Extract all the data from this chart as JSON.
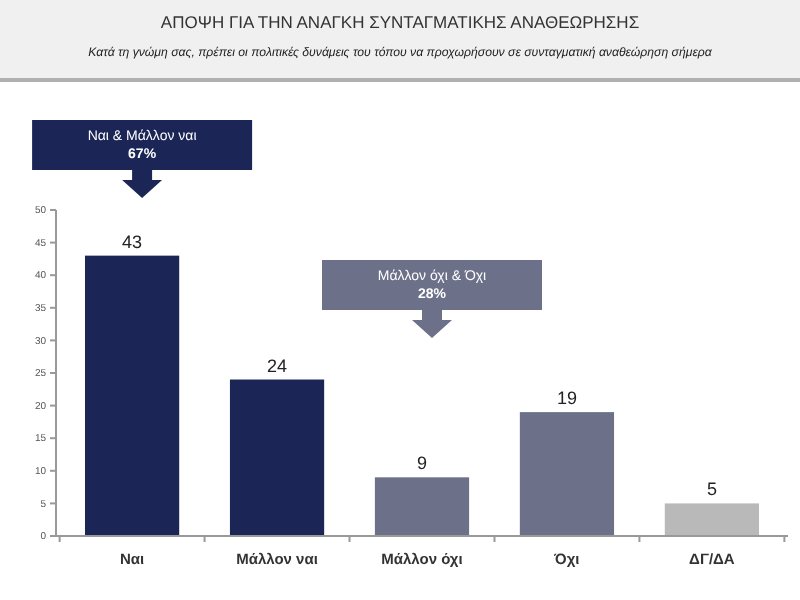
{
  "chart_data": {
    "type": "bar",
    "title": "ΑΠΟΨΗ ΓΙΑ ΤΗΝ ΑΝΑΓΚΗ ΣΥΝΤΑΓΜΑΤΙΚΗΣ ΑΝΑΘΕΩΡΗΣΗΣ",
    "subtitle": "Κατά τη γνώμη σας, πρέπει οι πολιτικές δυνάμεις του τόπου να προχωρήσουν σε συνταγματική αναθεώρηση σήμερα",
    "categories": [
      "Ναι",
      "Μάλλον ναι",
      "Μάλλον όχι",
      "Όχι",
      "ΔΓ/ΔΑ"
    ],
    "values": [
      43,
      24,
      9,
      19,
      5
    ],
    "colors": [
      "#1b2656",
      "#1b2656",
      "#6c7089",
      "#6c7089",
      "#b9b9b9"
    ],
    "ylim": [
      0,
      50
    ],
    "yticks": [
      0,
      5,
      10,
      15,
      20,
      25,
      30,
      35,
      40,
      45,
      50
    ],
    "grid": false,
    "data_labels": true,
    "annotations": [
      "Ναι & Μάλλον ναι\n67%",
      "Μάλλον όχι & Όχι\n28%"
    ]
  }
}
